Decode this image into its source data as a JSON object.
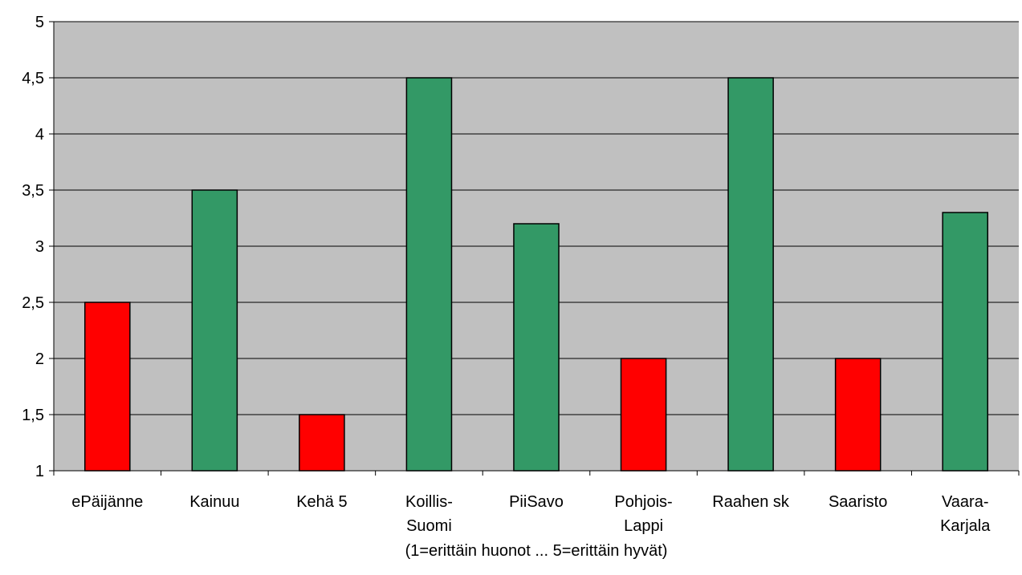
{
  "chart_data": {
    "type": "bar",
    "title": "",
    "xlabel": "(1=erittäin huonot ... 5=erittäin hyvät)",
    "ylabel": "",
    "ylim": [
      1,
      5
    ],
    "yticks": [
      "1",
      "1,5",
      "2",
      "2,5",
      "3",
      "3,5",
      "4",
      "4,5",
      "5"
    ],
    "grid": true,
    "legend": "none",
    "categories": [
      [
        "ePäijänne"
      ],
      [
        "Kainuu"
      ],
      [
        "Kehä 5"
      ],
      [
        "Koillis-",
        "Suomi"
      ],
      [
        "PiiSavo"
      ],
      [
        "Pohjois-",
        "Lappi"
      ],
      [
        "Raahen sk"
      ],
      [
        "Saaristo"
      ],
      [
        "Vaara-",
        "Karjala"
      ]
    ],
    "values": [
      2.5,
      3.5,
      1.5,
      4.5,
      3.2,
      2.0,
      4.5,
      2.0,
      3.3
    ],
    "bar_colors": [
      "#ff0000",
      "#339966",
      "#ff0000",
      "#339966",
      "#339966",
      "#ff0000",
      "#339966",
      "#ff0000",
      "#339966"
    ],
    "plot_background": "#c0c0c0"
  }
}
